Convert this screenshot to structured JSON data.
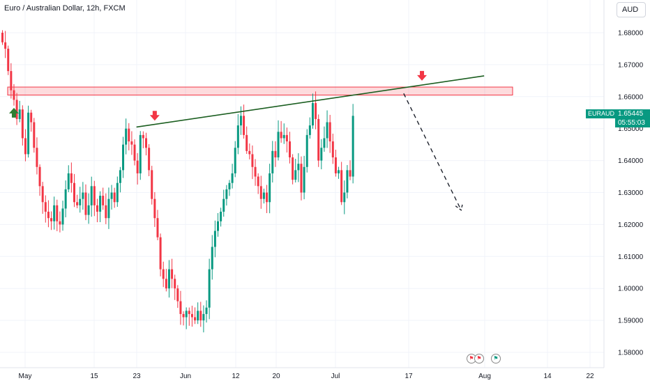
{
  "header": {
    "title": "Euro / Australian Dollar, 12h, FXCM"
  },
  "currency_button": {
    "label": "AUD"
  },
  "price_tag": {
    "symbol": "EURAUD",
    "price": "1.65445",
    "countdown": "05:55:03",
    "color": "#089981"
  },
  "colors": {
    "up": "#089981",
    "down": "#f23645",
    "resistance_zone": "#f23645",
    "trendline": "#1b5e20",
    "arrow_up": "#2e7d32",
    "arrow_down": "#f23645"
  },
  "chart_data": {
    "type": "candlestick",
    "title": "Euro / Australian Dollar, 12h, FXCM",
    "y_axis": {
      "ticks": [
        "1.68000",
        "1.67000",
        "1.66000",
        "1.65000",
        "1.64000",
        "1.63000",
        "1.62000",
        "1.61000",
        "1.60000",
        "1.59000",
        "1.58000"
      ],
      "range": [
        1.5775,
        1.6855
      ]
    },
    "x_axis": {
      "ticks": [
        "May",
        "15",
        "23",
        "Jun",
        "12",
        "20",
        "Jul",
        "17",
        "Aug",
        "14",
        "22"
      ]
    },
    "closes": [
      1.677,
      1.675,
      1.668,
      1.662,
      1.659,
      1.653,
      1.656,
      1.647,
      1.642,
      1.655,
      1.652,
      1.644,
      1.638,
      1.632,
      1.627,
      1.624,
      1.622,
      1.621,
      1.626,
      1.621,
      1.62,
      1.625,
      1.631,
      1.636,
      1.633,
      1.627,
      1.626,
      1.628,
      1.63,
      1.623,
      1.626,
      1.632,
      1.626,
      1.624,
      1.629,
      1.626,
      1.622,
      1.628,
      1.63,
      1.627,
      1.633,
      1.637,
      1.645,
      1.65,
      1.646,
      1.645,
      1.64,
      1.636,
      1.648,
      1.647,
      1.644,
      1.637,
      1.628,
      1.622,
      1.616,
      1.606,
      1.603,
      1.6,
      1.606,
      1.603,
      1.6,
      1.596,
      1.592,
      1.591,
      1.593,
      1.592,
      1.591,
      1.59,
      1.593,
      1.59,
      1.592,
      1.594,
      1.606,
      1.613,
      1.618,
      1.621,
      1.624,
      1.628,
      1.631,
      1.633,
      1.636,
      1.644,
      1.651,
      1.654,
      1.648,
      1.643,
      1.642,
      1.638,
      1.635,
      1.632,
      1.628,
      1.63,
      1.627,
      1.636,
      1.643,
      1.641,
      1.649,
      1.647,
      1.648,
      1.646,
      1.641,
      1.634,
      1.637,
      1.639,
      1.63,
      1.638,
      1.648,
      1.651,
      1.658,
      1.653,
      1.64,
      1.644,
      1.647,
      1.652,
      1.646,
      1.641,
      1.636,
      1.637,
      1.627,
      1.63,
      1.637,
      1.635,
      1.654
    ],
    "annotations": {
      "resistance_zone": [
        1.6605,
        1.663
      ],
      "trendline": {
        "from": {
          "index": 47,
          "price": 1.6505
        },
        "to": {
          "index": 168,
          "price": 1.6665
        }
      },
      "projection": {
        "from": {
          "index": 140,
          "price": 1.661
        },
        "to": {
          "index": 160,
          "price": 1.6245
        }
      },
      "markers": [
        {
          "type": "arrow-up",
          "index": 4,
          "price": 1.6565
        },
        {
          "type": "arrow-down",
          "index": 53,
          "price": 1.6525
        },
        {
          "type": "arrow-down",
          "index": 146,
          "price": 1.665
        }
      ]
    }
  }
}
